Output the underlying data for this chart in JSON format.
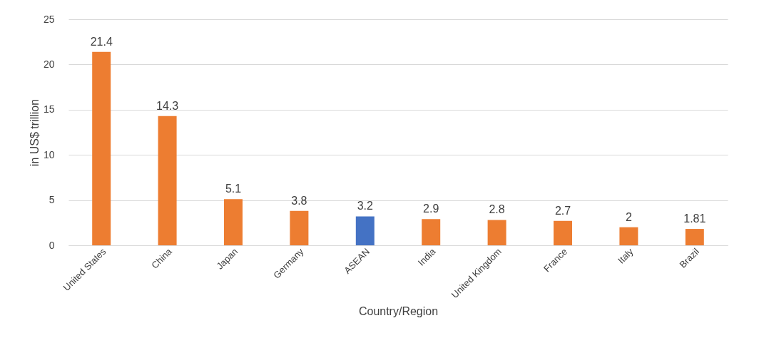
{
  "chart_data": {
    "type": "bar",
    "xlabel": "Country/Region",
    "ylabel": "in US$ trillion",
    "categories": [
      "United States",
      "China",
      "Japan",
      "Germany",
      "ASEAN",
      "India",
      "United Kingdom",
      "France",
      "Italy",
      "Brazil"
    ],
    "values": [
      21.4,
      14.3,
      5.1,
      3.8,
      3.2,
      2.9,
      2.8,
      2.7,
      2,
      1.81
    ],
    "colors": [
      "#ed7d31",
      "#ed7d31",
      "#ed7d31",
      "#ed7d31",
      "#4472c4",
      "#ed7d31",
      "#ed7d31",
      "#ed7d31",
      "#ed7d31",
      "#ed7d31"
    ],
    "ylim": [
      0,
      25
    ],
    "yticks": [
      0,
      5,
      10,
      15,
      20,
      25
    ],
    "grid": "y",
    "data_labels": true
  }
}
